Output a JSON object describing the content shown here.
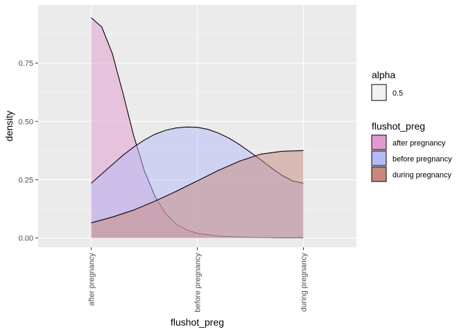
{
  "chart_data": {
    "type": "area",
    "xlabel": "flushot_preg",
    "ylabel": "density",
    "categories": [
      "after pregnancy",
      "before pregnancy",
      "during pregnancy"
    ],
    "xlim": [
      0.5,
      3.5
    ],
    "ylim": [
      -0.04,
      1.0
    ],
    "yticks": [
      0.0,
      0.25,
      0.5,
      0.75
    ],
    "ytick_labels": [
      "0.00",
      "0.25",
      "0.50",
      "0.75"
    ],
    "grid": true,
    "legend_position": "right",
    "alpha_legend": {
      "title": "alpha",
      "label": "0.5",
      "color": "#f2f2f2"
    },
    "fill_legend": {
      "title": "flushot_preg"
    },
    "series": [
      {
        "name": "after pregnancy",
        "color": "#e19ad0",
        "x": [
          1.0,
          1.1,
          1.2,
          1.3,
          1.4,
          1.5,
          1.6,
          1.7,
          1.8,
          1.9,
          2.0,
          2.2,
          2.4,
          2.6,
          2.8,
          3.0
        ],
        "y": [
          0.945,
          0.905,
          0.79,
          0.62,
          0.44,
          0.29,
          0.18,
          0.105,
          0.06,
          0.035,
          0.02,
          0.008,
          0.004,
          0.002,
          0.001,
          0.001
        ]
      },
      {
        "name": "before pregnancy",
        "color": "#b4baf5",
        "x": [
          1.0,
          1.1,
          1.2,
          1.3,
          1.4,
          1.5,
          1.6,
          1.7,
          1.8,
          1.9,
          2.0,
          2.1,
          2.2,
          2.3,
          2.4,
          2.5,
          2.6,
          2.7,
          2.8,
          2.9,
          3.0
        ],
        "y": [
          0.235,
          0.275,
          0.315,
          0.355,
          0.39,
          0.42,
          0.445,
          0.462,
          0.472,
          0.476,
          0.475,
          0.466,
          0.45,
          0.428,
          0.4,
          0.368,
          0.335,
          0.3,
          0.268,
          0.245,
          0.235
        ]
      },
      {
        "name": "during pregnancy",
        "color": "#c8877d",
        "x": [
          1.0,
          1.2,
          1.4,
          1.6,
          1.8,
          2.0,
          2.2,
          2.4,
          2.6,
          2.8,
          3.0
        ],
        "y": [
          0.065,
          0.09,
          0.12,
          0.158,
          0.2,
          0.245,
          0.29,
          0.33,
          0.36,
          0.372,
          0.375
        ]
      }
    ]
  }
}
